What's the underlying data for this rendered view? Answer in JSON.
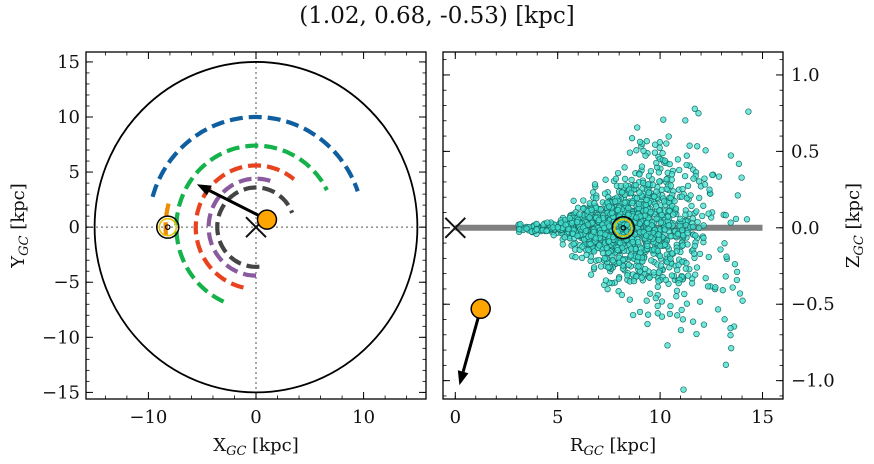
{
  "title": "(1.02, 0.68, -0.53) [kpc]",
  "chart_data": [
    {
      "type": "line",
      "name": "xy",
      "xlabel": "X",
      "xlabel_sub": "GC",
      "xlabel_unit": " [kpc]",
      "ylabel": "Y",
      "ylabel_sub": "GC",
      "ylabel_unit": " [kpc]",
      "xlim": [
        -15.8,
        15.8
      ],
      "ylim": [
        -15.6,
        15.9
      ],
      "xticks": [
        -10,
        0,
        10
      ],
      "yticks": [
        -15,
        -10,
        -5,
        0,
        5,
        10,
        15
      ],
      "xtick_labels": [
        "−10",
        "0",
        "10"
      ],
      "ytick_labels": [
        "−15",
        "−10",
        "−5",
        "0",
        "5",
        "10",
        "15"
      ],
      "circle_radius": 15,
      "arms": [
        {
          "color": "#0f5fa0",
          "radius": 10.0,
          "theta_start": 164,
          "theta_end": 19
        },
        {
          "color": "#14b24a",
          "radius": 7.4,
          "theta_start": 246,
          "theta_end": 27
        },
        {
          "color": "#f08c00",
          "radius": 8.4,
          "theta_start": 185,
          "theta_end": 162
        },
        {
          "color": "#e8421e",
          "radius": 5.6,
          "theta_start": 258,
          "theta_end": 51
        },
        {
          "color": "#8a5a9e",
          "radius": 4.4,
          "theta_start": 270,
          "theta_end": 68
        },
        {
          "color": "#444444",
          "radius": 3.6,
          "theta_start": 275,
          "theta_end": 21
        }
      ],
      "sun": {
        "x": -8.2,
        "y": 0.0
      },
      "center": {
        "x": 0,
        "y": 0
      },
      "object": {
        "x": 1.02,
        "y": 0.68
      },
      "velocity_arrow_tip": {
        "x": -5.5,
        "y": 3.9
      },
      "marker_color": "#ffa500"
    },
    {
      "type": "scatter",
      "name": "rz",
      "xlabel": "R",
      "xlabel_sub": "GC",
      "xlabel_unit": " [kpc]",
      "ylabel": "Z",
      "ylabel_sub": "GC",
      "ylabel_unit": " [kpc]",
      "xlim": [
        -0.6,
        16.0
      ],
      "ylim": [
        -1.12,
        1.15
      ],
      "xticks": [
        0,
        5,
        10,
        15
      ],
      "yticks": [
        -1.0,
        -0.5,
        0.0,
        0.5,
        1.0
      ],
      "xtick_labels": [
        "0",
        "5",
        "10",
        "15"
      ],
      "ytick_labels": [
        "−1.0",
        "−0.5",
        "0.0",
        "0.5",
        "1.0"
      ],
      "disk_line": {
        "x": [
          0,
          15
        ],
        "y": 0,
        "color": "#808080"
      },
      "sun": {
        "x": 8.2,
        "y": 0.0
      },
      "center": {
        "x": 0,
        "y": 0
      },
      "object": {
        "x": 1.24,
        "y": -0.53
      },
      "velocity_arrow_tip": {
        "x": 0.2,
        "y": -1.03
      },
      "point_color": "#40e0d0",
      "point_count": 1400,
      "points_spread": {
        "r_mean": 8.2,
        "r_min": 3,
        "r_max": 15.5,
        "z_scale_base": 0.02,
        "z_scale_growth": 0.045
      }
    }
  ]
}
